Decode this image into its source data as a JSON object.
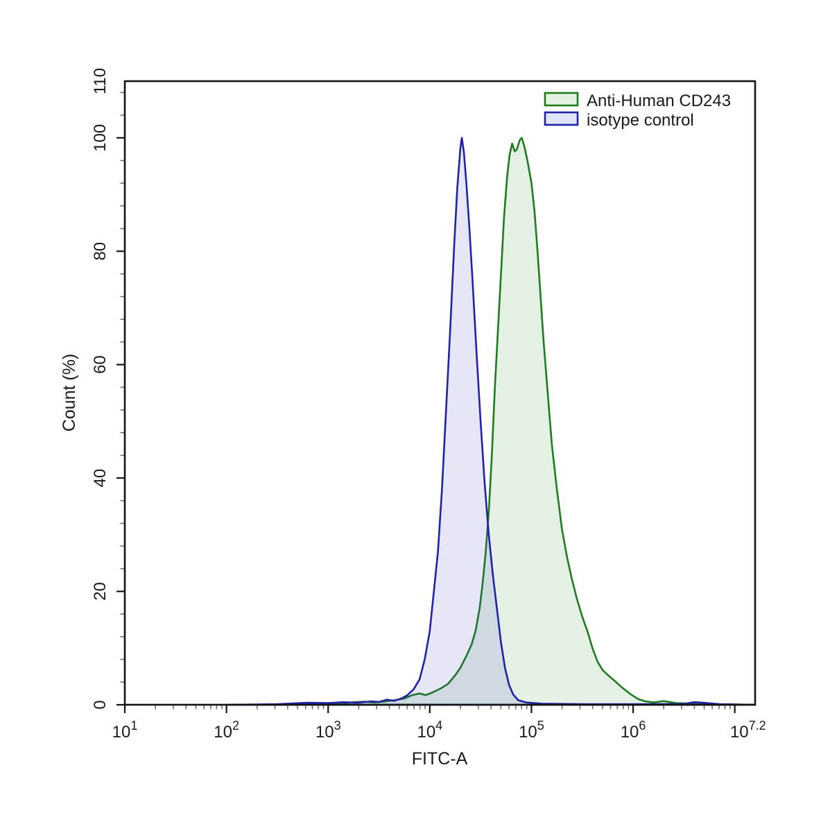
{
  "chart_data": {
    "type": "area",
    "title": "",
    "xlabel": "FITC-A",
    "ylabel": "Count  (%)",
    "x_scale": "log10",
    "x_range_log": [
      1,
      7.2
    ],
    "y_range": [
      0,
      110
    ],
    "grid": false,
    "legend_position": "top-right",
    "x_major_ticks_log": [
      1,
      2,
      3,
      4,
      5,
      6,
      7
    ],
    "x_tick_labels": [
      {
        "base": "10",
        "exp": "1",
        "log": 1
      },
      {
        "base": "10",
        "exp": "2",
        "log": 2
      },
      {
        "base": "10",
        "exp": "3",
        "log": 3
      },
      {
        "base": "10",
        "exp": "4",
        "log": 4
      },
      {
        "base": "10",
        "exp": "5",
        "log": 5
      },
      {
        "base": "10",
        "exp": "6",
        "log": 6
      },
      {
        "base": "10",
        "exp": "7.2",
        "log": 7.13
      }
    ],
    "y_major_ticks": [
      0,
      20,
      40,
      60,
      80,
      100
    ],
    "y_tick_labels": [
      0,
      20,
      40,
      60,
      80,
      100,
      110
    ],
    "y_minor_step": 4,
    "colors": {
      "axis": "#141414",
      "minor_tick": "#6e6e6e",
      "green_line": "#1e7b1e",
      "green_fill": "rgba(44,130,44,0.12)",
      "blue_line": "#2121a8",
      "blue_fill": "rgba(60,60,190,0.13)",
      "legend_green_fill": "#e3f2e1",
      "legend_blue_fill": "#e0e4f8"
    },
    "series": [
      {
        "name": "Anti-Human CD243",
        "color": "#1e7b1e",
        "peak_log_x": 4.9,
        "peak_count_pct": 100,
        "points": [
          [
            2.0,
            0
          ],
          [
            2.9,
            0.05
          ],
          [
            3.1,
            0.2
          ],
          [
            3.25,
            0.45
          ],
          [
            3.35,
            0.55
          ],
          [
            3.45,
            0.4
          ],
          [
            3.55,
            0.55
          ],
          [
            3.65,
            0.8
          ],
          [
            3.75,
            1.1
          ],
          [
            3.83,
            1.7
          ],
          [
            3.9,
            2.0
          ],
          [
            3.96,
            1.7
          ],
          [
            4.03,
            2.2
          ],
          [
            4.11,
            2.9
          ],
          [
            4.18,
            3.7
          ],
          [
            4.25,
            5.2
          ],
          [
            4.3,
            6.5
          ],
          [
            4.36,
            8.6
          ],
          [
            4.41,
            10.6
          ],
          [
            4.45,
            13
          ],
          [
            4.49,
            17
          ],
          [
            4.52,
            21.5
          ],
          [
            4.55,
            27
          ],
          [
            4.58,
            34
          ],
          [
            4.61,
            44
          ],
          [
            4.64,
            56
          ],
          [
            4.67,
            66
          ],
          [
            4.7,
            76
          ],
          [
            4.73,
            86
          ],
          [
            4.76,
            93
          ],
          [
            4.785,
            97
          ],
          [
            4.81,
            99
          ],
          [
            4.835,
            97.6
          ],
          [
            4.855,
            97.9
          ],
          [
            4.885,
            99.6
          ],
          [
            4.905,
            100
          ],
          [
            4.93,
            98.5
          ],
          [
            4.96,
            96
          ],
          [
            5.0,
            92
          ],
          [
            5.03,
            87
          ],
          [
            5.06,
            80
          ],
          [
            5.09,
            72
          ],
          [
            5.12,
            64
          ],
          [
            5.16,
            55
          ],
          [
            5.2,
            46
          ],
          [
            5.25,
            38
          ],
          [
            5.3,
            31
          ],
          [
            5.35,
            26
          ],
          [
            5.4,
            22
          ],
          [
            5.45,
            18.5
          ],
          [
            5.5,
            15.5
          ],
          [
            5.55,
            13
          ],
          [
            5.6,
            10
          ],
          [
            5.65,
            7.6
          ],
          [
            5.7,
            6.1
          ],
          [
            5.76,
            5.1
          ],
          [
            5.82,
            4.2
          ],
          [
            5.88,
            3.2
          ],
          [
            5.93,
            2.5
          ],
          [
            5.98,
            1.8
          ],
          [
            6.05,
            1.0
          ],
          [
            6.12,
            0.6
          ],
          [
            6.2,
            0.4
          ],
          [
            6.3,
            0.65
          ],
          [
            6.42,
            0.3
          ],
          [
            6.6,
            0.2
          ],
          [
            6.8,
            0.12
          ],
          [
            7.0,
            0.05
          ],
          [
            7.2,
            0
          ]
        ]
      },
      {
        "name": "isotype control",
        "color": "#2121a8",
        "peak_log_x": 4.31,
        "peak_count_pct": 100,
        "points": [
          [
            2.0,
            0
          ],
          [
            2.5,
            0.1
          ],
          [
            2.8,
            0.35
          ],
          [
            3.0,
            0.3
          ],
          [
            3.15,
            0.45
          ],
          [
            3.3,
            0.35
          ],
          [
            3.42,
            0.6
          ],
          [
            3.5,
            0.5
          ],
          [
            3.58,
            0.9
          ],
          [
            3.65,
            0.7
          ],
          [
            3.72,
            1.1
          ],
          [
            3.78,
            1.7
          ],
          [
            3.84,
            2.7
          ],
          [
            3.9,
            4.5
          ],
          [
            3.95,
            8
          ],
          [
            4.0,
            13
          ],
          [
            4.04,
            20
          ],
          [
            4.08,
            27
          ],
          [
            4.12,
            38
          ],
          [
            4.16,
            52
          ],
          [
            4.2,
            66
          ],
          [
            4.24,
            81
          ],
          [
            4.27,
            91
          ],
          [
            4.3,
            98
          ],
          [
            4.315,
            100
          ],
          [
            4.335,
            97.5
          ],
          [
            4.36,
            92
          ],
          [
            4.39,
            84
          ],
          [
            4.42,
            75
          ],
          [
            4.46,
            62
          ],
          [
            4.5,
            50
          ],
          [
            4.54,
            39
          ],
          [
            4.58,
            30
          ],
          [
            4.62,
            23
          ],
          [
            4.66,
            17
          ],
          [
            4.7,
            11
          ],
          [
            4.74,
            6.5
          ],
          [
            4.78,
            3.5
          ],
          [
            4.82,
            1.8
          ],
          [
            4.87,
            0.8
          ],
          [
            4.95,
            0.4
          ],
          [
            5.1,
            0.2
          ],
          [
            5.5,
            0.1
          ],
          [
            6.1,
            0.1
          ],
          [
            6.5,
            0.15
          ],
          [
            6.6,
            0.45
          ],
          [
            6.7,
            0.35
          ],
          [
            6.85,
            0.1
          ],
          [
            7.0,
            0.05
          ],
          [
            7.2,
            0
          ]
        ]
      }
    ],
    "legend": {
      "entries": [
        {
          "label": "Anti-Human CD243",
          "swatch": "green"
        },
        {
          "label": "isotype control",
          "swatch": "blue"
        }
      ]
    }
  }
}
